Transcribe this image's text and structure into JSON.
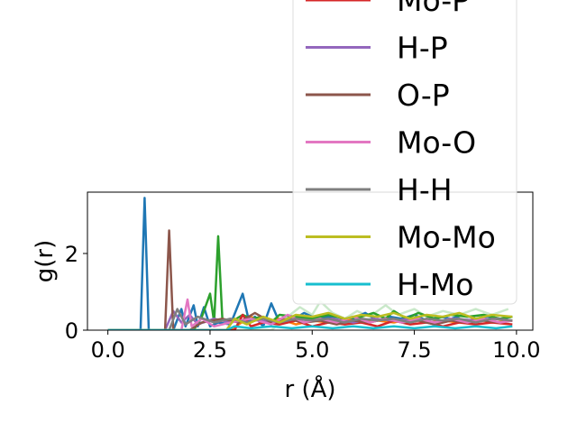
{
  "chart_data": {
    "type": "line",
    "xlabel": "r (Å)",
    "ylabel": "g(r)",
    "xlim": [
      -0.5,
      10.4
    ],
    "ylim": [
      0,
      3.6
    ],
    "x_ticks": [
      0.0,
      2.5,
      5.0,
      7.5,
      10.0
    ],
    "x_tick_labels": [
      "0.0",
      "2.5",
      "5.0",
      "7.5",
      "10.0"
    ],
    "y_ticks": [
      0,
      2
    ],
    "y_tick_labels": [
      "0",
      "2"
    ],
    "grid": false,
    "legend_position": "upper-right (overflowing top of axes)",
    "series": [
      {
        "name": "",
        "color": "#1f77b4",
        "points": [
          [
            0,
            0
          ],
          [
            0.8,
            0
          ],
          [
            0.9,
            3.45
          ],
          [
            1.0,
            0
          ],
          [
            1.6,
            0
          ],
          [
            1.8,
            0.55
          ],
          [
            1.9,
            0.1
          ],
          [
            2.1,
            0.65
          ],
          [
            2.2,
            0.1
          ],
          [
            2.35,
            0.6
          ],
          [
            2.5,
            0.1
          ],
          [
            2.7,
            0.2
          ],
          [
            3.0,
            0.15
          ],
          [
            3.3,
            0.95
          ],
          [
            3.45,
            0.25
          ],
          [
            3.6,
            0.35
          ],
          [
            3.8,
            0.1
          ],
          [
            4.0,
            0.7
          ],
          [
            4.2,
            0.2
          ],
          [
            4.5,
            0.25
          ],
          [
            4.8,
            0.45
          ],
          [
            5.1,
            0.3
          ],
          [
            5.4,
            0.35
          ],
          [
            5.7,
            0.25
          ],
          [
            6.0,
            0.3
          ],
          [
            6.3,
            0.45
          ],
          [
            6.6,
            0.25
          ],
          [
            6.9,
            0.35
          ],
          [
            7.2,
            0.3
          ],
          [
            7.5,
            0.4
          ],
          [
            7.8,
            0.25
          ],
          [
            8.1,
            0.35
          ],
          [
            8.4,
            0.3
          ],
          [
            8.7,
            0.4
          ],
          [
            9.0,
            0.3
          ],
          [
            9.3,
            0.35
          ],
          [
            9.6,
            0.3
          ],
          [
            9.9,
            0.35
          ]
        ]
      },
      {
        "name": "",
        "color": "#ff7f0e",
        "points": [
          [
            0,
            0
          ],
          [
            3.0,
            0
          ],
          [
            3.2,
            0.15
          ],
          [
            3.5,
            0.35
          ],
          [
            3.8,
            0.2
          ],
          [
            4.2,
            0.3
          ],
          [
            4.6,
            0.15
          ],
          [
            5.0,
            0.25
          ],
          [
            5.4,
            0.2
          ],
          [
            5.8,
            0.3
          ],
          [
            6.2,
            0.2
          ],
          [
            6.6,
            0.25
          ],
          [
            7.0,
            0.2
          ],
          [
            7.4,
            0.3
          ],
          [
            7.8,
            0.2
          ],
          [
            8.2,
            0.25
          ],
          [
            8.6,
            0.2
          ],
          [
            9.0,
            0.3
          ],
          [
            9.4,
            0.2
          ],
          [
            9.9,
            0.25
          ]
        ]
      },
      {
        "name": "",
        "color": "#2ca02c",
        "points": [
          [
            0,
            0
          ],
          [
            2.1,
            0
          ],
          [
            2.3,
            0.35
          ],
          [
            2.5,
            0.95
          ],
          [
            2.6,
            0.2
          ],
          [
            2.7,
            2.45
          ],
          [
            2.8,
            0.3
          ],
          [
            3.0,
            0.2
          ],
          [
            3.3,
            0.4
          ],
          [
            3.5,
            0.3
          ],
          [
            3.8,
            0.35
          ],
          [
            4.0,
            0.2
          ],
          [
            4.2,
            0.4
          ],
          [
            4.6,
            0.35
          ],
          [
            5.0,
            0.3
          ],
          [
            5.4,
            0.4
          ],
          [
            5.8,
            0.3
          ],
          [
            6.2,
            0.35
          ],
          [
            6.5,
            0.45
          ],
          [
            6.8,
            0.3
          ],
          [
            7.0,
            0.5
          ],
          [
            7.3,
            0.3
          ],
          [
            7.6,
            0.45
          ],
          [
            8.0,
            0.3
          ],
          [
            8.4,
            0.4
          ],
          [
            8.8,
            0.35
          ],
          [
            9.2,
            0.4
          ],
          [
            9.6,
            0.3
          ],
          [
            9.9,
            0.35
          ]
        ]
      },
      {
        "name": "Mo-P",
        "color": "#d62728",
        "points": [
          [
            0,
            0
          ],
          [
            3.1,
            0
          ],
          [
            3.3,
            0.4
          ],
          [
            3.5,
            0.1
          ],
          [
            3.8,
            0.2
          ],
          [
            4.2,
            0.15
          ],
          [
            4.6,
            0.25
          ],
          [
            5.0,
            0.1
          ],
          [
            5.4,
            0.2
          ],
          [
            5.8,
            0.15
          ],
          [
            6.2,
            0.2
          ],
          [
            6.6,
            0.1
          ],
          [
            7.0,
            0.25
          ],
          [
            7.4,
            0.15
          ],
          [
            7.8,
            0.2
          ],
          [
            8.2,
            0.1
          ],
          [
            8.6,
            0.2
          ],
          [
            9.0,
            0.15
          ],
          [
            9.4,
            0.2
          ],
          [
            9.9,
            0.15
          ]
        ]
      },
      {
        "name": "H-P",
        "color": "#9467bd",
        "points": [
          [
            0,
            0
          ],
          [
            1.4,
            0
          ],
          [
            1.6,
            0.5
          ],
          [
            1.8,
            0.2
          ],
          [
            2.0,
            0.4
          ],
          [
            2.2,
            0.15
          ],
          [
            2.6,
            0.3
          ],
          [
            3.0,
            0.2
          ],
          [
            3.5,
            0.3
          ],
          [
            4.0,
            0.2
          ],
          [
            4.5,
            0.3
          ],
          [
            5.0,
            0.25
          ],
          [
            5.5,
            0.3
          ],
          [
            6.0,
            0.2
          ],
          [
            6.5,
            0.3
          ],
          [
            7.0,
            0.25
          ],
          [
            7.5,
            0.3
          ],
          [
            8.0,
            0.2
          ],
          [
            8.5,
            0.3
          ],
          [
            9.0,
            0.25
          ],
          [
            9.5,
            0.3
          ],
          [
            9.9,
            0.25
          ]
        ]
      },
      {
        "name": "O-P",
        "color": "#8c564b",
        "points": [
          [
            0,
            0
          ],
          [
            1.4,
            0
          ],
          [
            1.5,
            2.6
          ],
          [
            1.6,
            0
          ],
          [
            2.0,
            0
          ],
          [
            2.3,
            0.2
          ],
          [
            2.8,
            0.3
          ],
          [
            3.2,
            0.2
          ],
          [
            3.6,
            0.45
          ],
          [
            4.0,
            0.2
          ],
          [
            4.4,
            0.3
          ],
          [
            4.8,
            0.2
          ],
          [
            5.2,
            0.25
          ],
          [
            5.6,
            0.15
          ],
          [
            6.0,
            0.25
          ],
          [
            6.4,
            0.2
          ],
          [
            6.8,
            0.3
          ],
          [
            7.2,
            0.2
          ],
          [
            7.6,
            0.25
          ],
          [
            8.0,
            0.15
          ],
          [
            8.4,
            0.25
          ],
          [
            8.8,
            0.2
          ],
          [
            9.2,
            0.25
          ],
          [
            9.6,
            0.2
          ],
          [
            9.9,
            0.25
          ]
        ]
      },
      {
        "name": "Mo-O",
        "color": "#e377c2",
        "points": [
          [
            0,
            0
          ],
          [
            1.8,
            0
          ],
          [
            1.95,
            0.8
          ],
          [
            2.05,
            0.1
          ],
          [
            2.3,
            0.3
          ],
          [
            2.6,
            0.1
          ],
          [
            3.0,
            0.2
          ],
          [
            3.5,
            0.3
          ],
          [
            4.0,
            0.15
          ],
          [
            4.4,
            0.4
          ],
          [
            4.8,
            0.2
          ],
          [
            5.2,
            0.3
          ],
          [
            5.6,
            0.2
          ],
          [
            6.0,
            0.35
          ],
          [
            6.4,
            0.2
          ],
          [
            6.8,
            0.3
          ],
          [
            7.2,
            0.2
          ],
          [
            7.6,
            0.3
          ],
          [
            8.0,
            0.2
          ],
          [
            8.4,
            0.3
          ],
          [
            8.8,
            0.2
          ],
          [
            9.2,
            0.3
          ],
          [
            9.6,
            0.2
          ],
          [
            9.9,
            0.25
          ]
        ]
      },
      {
        "name": "H-H",
        "color": "#7f7f7f",
        "points": [
          [
            0,
            0
          ],
          [
            1.5,
            0
          ],
          [
            1.7,
            0.55
          ],
          [
            1.9,
            0.15
          ],
          [
            2.2,
            0.35
          ],
          [
            2.6,
            0.2
          ],
          [
            3.0,
            0.3
          ],
          [
            3.4,
            0.2
          ],
          [
            3.8,
            0.3
          ],
          [
            4.2,
            0.2
          ],
          [
            4.6,
            0.3
          ],
          [
            5.0,
            0.25
          ],
          [
            5.4,
            0.3
          ],
          [
            5.8,
            0.2
          ],
          [
            6.2,
            0.3
          ],
          [
            6.6,
            0.25
          ],
          [
            7.0,
            0.3
          ],
          [
            7.4,
            0.2
          ],
          [
            7.8,
            0.3
          ],
          [
            8.2,
            0.25
          ],
          [
            8.6,
            0.3
          ],
          [
            9.0,
            0.2
          ],
          [
            9.4,
            0.3
          ],
          [
            9.9,
            0.25
          ]
        ]
      },
      {
        "name": "Mo-Mo",
        "color": "#bcbd22",
        "points": [
          [
            0,
            0
          ],
          [
            2.9,
            0
          ],
          [
            3.1,
            0.3
          ],
          [
            3.4,
            0.15
          ],
          [
            3.8,
            0.35
          ],
          [
            4.2,
            0.2
          ],
          [
            4.6,
            0.4
          ],
          [
            5.0,
            0.35
          ],
          [
            5.4,
            0.45
          ],
          [
            5.8,
            0.3
          ],
          [
            6.2,
            0.4
          ],
          [
            6.6,
            0.35
          ],
          [
            7.0,
            0.45
          ],
          [
            7.4,
            0.3
          ],
          [
            7.8,
            0.4
          ],
          [
            8.2,
            0.35
          ],
          [
            8.6,
            0.45
          ],
          [
            9.0,
            0.3
          ],
          [
            9.4,
            0.4
          ],
          [
            9.9,
            0.35
          ]
        ]
      },
      {
        "name": "H-Mo",
        "color": "#17becf",
        "points": [
          [
            0,
            0
          ],
          [
            2.9,
            0
          ],
          [
            3.1,
            0.1
          ],
          [
            3.5,
            0.05
          ],
          [
            4.0,
            0.1
          ],
          [
            4.5,
            0.05
          ],
          [
            5.0,
            0.1
          ],
          [
            5.5,
            0.05
          ],
          [
            6.0,
            0.1
          ],
          [
            6.5,
            0.05
          ],
          [
            7.0,
            0.1
          ],
          [
            7.5,
            0.05
          ],
          [
            8.0,
            0.1
          ],
          [
            8.5,
            0.05
          ],
          [
            9.0,
            0.1
          ],
          [
            9.5,
            0.05
          ],
          [
            9.9,
            0.1
          ]
        ]
      },
      {
        "name": "",
        "color": "#c9e8c9",
        "points": [
          [
            0,
            0
          ],
          [
            4.0,
            0
          ],
          [
            4.4,
            0.35
          ],
          [
            4.7,
            0.6
          ],
          [
            5.0,
            0.4
          ],
          [
            5.2,
            0.75
          ],
          [
            5.5,
            0.45
          ],
          [
            5.8,
            0.3
          ],
          [
            6.1,
            0.5
          ],
          [
            6.4,
            0.35
          ],
          [
            6.8,
            0.65
          ],
          [
            7.1,
            0.4
          ],
          [
            7.5,
            0.55
          ],
          [
            7.8,
            0.35
          ],
          [
            8.2,
            0.5
          ],
          [
            8.6,
            0.4
          ],
          [
            9.0,
            0.55
          ],
          [
            9.4,
            0.4
          ],
          [
            9.8,
            0.55
          ]
        ]
      }
    ],
    "legend_visible": [
      "Mo-P",
      "H-P",
      "O-P",
      "Mo-O",
      "H-H",
      "Mo-Mo",
      "H-Mo"
    ]
  }
}
